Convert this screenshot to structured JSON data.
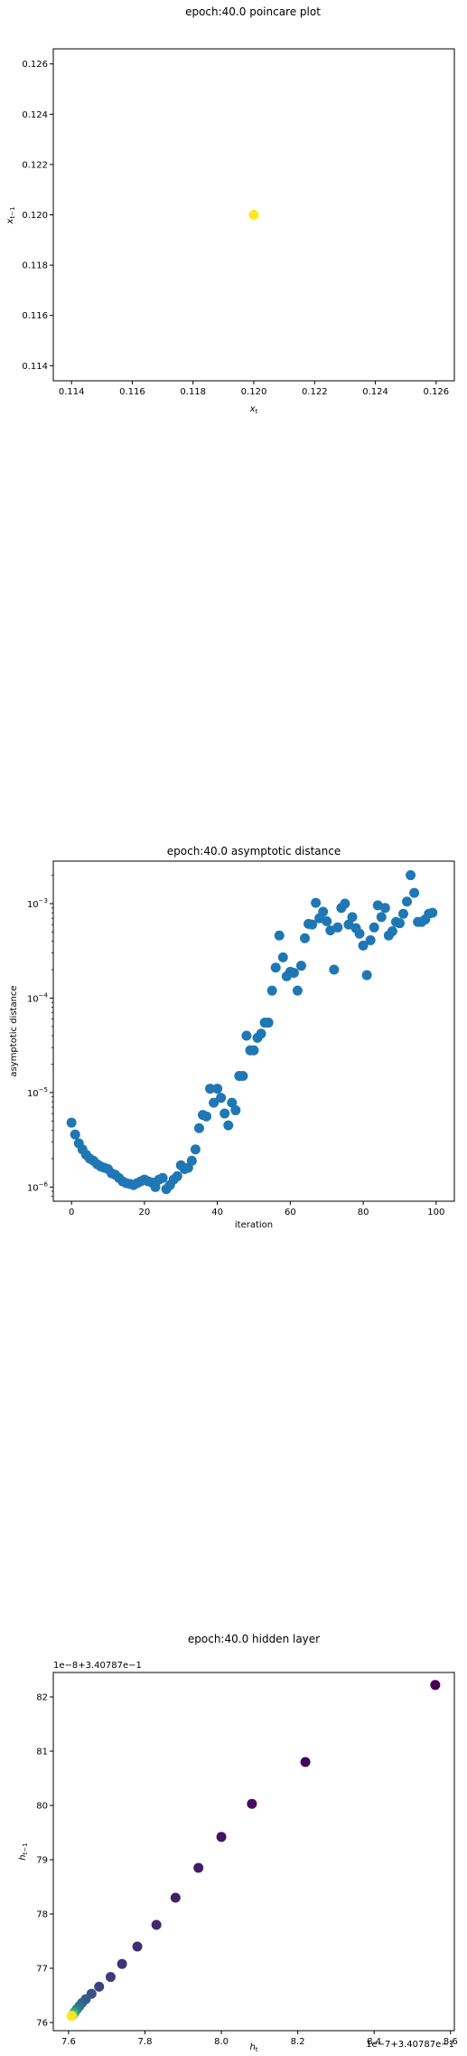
{
  "chart_data": [
    {
      "type": "scatter",
      "title": "epoch:40.0 poincare plot",
      "xlabel": "x_t",
      "ylabel": "x_{t−1}",
      "xlim": [
        0.1134,
        0.1266
      ],
      "ylim": [
        0.1134,
        0.1266
      ],
      "xticks": [
        "0.114",
        "0.116",
        "0.118",
        "0.120",
        "0.122",
        "0.124",
        "0.126"
      ],
      "yticks": [
        "0.114",
        "0.116",
        "0.118",
        "0.120",
        "0.122",
        "0.124",
        "0.126"
      ],
      "x_tick_values": [
        0.114,
        0.116,
        0.118,
        0.12,
        0.122,
        0.124,
        0.126
      ],
      "y_tick_values": [
        0.114,
        0.116,
        0.118,
        0.12,
        0.122,
        0.124,
        0.126
      ],
      "points": [
        {
          "x": 0.12,
          "y": 0.12
        }
      ],
      "color": "#fde725",
      "grid": false
    },
    {
      "type": "scatter",
      "title": "epoch:40.0 asymptotic distance",
      "xlabel": "iteration",
      "ylabel": "asymptotic distance",
      "xlim": [
        -5,
        105
      ],
      "ylim_log10": [
        -6.15,
        -2.55
      ],
      "yscale": "log",
      "xticks": [
        "0",
        "20",
        "40",
        "60",
        "80",
        "100"
      ],
      "x_tick_values": [
        0,
        20,
        40,
        60,
        80,
        100
      ],
      "y_tick_exponents": [
        "−6",
        "−5",
        "−4",
        "−3"
      ],
      "y_tick_values": [
        1e-06,
        1e-05,
        0.0001,
        0.001
      ],
      "color": "#1f77b4",
      "grid": false,
      "x": [
        0,
        1,
        2,
        3,
        4,
        5,
        6,
        7,
        8,
        9,
        10,
        11,
        12,
        13,
        14,
        15,
        16,
        17,
        18,
        19,
        20,
        21,
        22,
        23,
        24,
        25,
        26,
        27,
        28,
        29,
        30,
        31,
        32,
        33,
        34,
        35,
        36,
        37,
        38,
        39,
        40,
        41,
        42,
        43,
        44,
        45,
        46,
        47,
        48,
        49,
        50,
        51,
        52,
        53,
        54,
        55,
        56,
        57,
        58,
        59,
        60,
        61,
        62,
        63,
        64,
        65,
        66,
        67,
        68,
        69,
        70,
        71,
        72,
        73,
        74,
        75,
        76,
        77,
        78,
        79,
        80,
        81,
        82,
        83,
        84,
        85,
        86,
        87,
        88,
        89,
        90,
        91,
        92,
        93,
        94,
        95,
        96,
        97,
        98,
        99
      ],
      "y": [
        4.8e-06,
        3.6e-06,
        2.9e-06,
        2.5e-06,
        2.2e-06,
        2e-06,
        1.9e-06,
        1.75e-06,
        1.65e-06,
        1.6e-06,
        1.55e-06,
        1.4e-06,
        1.35e-06,
        1.25e-06,
        1.15e-06,
        1.1e-06,
        1.08e-06,
        1.05e-06,
        1.1e-06,
        1.15e-06,
        1.2e-06,
        1.15e-06,
        1.12e-06,
        1e-06,
        1.2e-06,
        1.25e-06,
        9.5e-07,
        1.05e-06,
        1.2e-06,
        1.3e-06,
        1.7e-06,
        1.55e-06,
        1.6e-06,
        1.9e-06,
        2.5e-06,
        4.2e-06,
        5.8e-06,
        5.6e-06,
        1.1e-05,
        7.8e-06,
        1.1e-05,
        8.8e-06,
        6e-06,
        4.5e-06,
        7.8e-06,
        6.5e-06,
        1.5e-05,
        1.5e-05,
        4e-05,
        2.8e-05,
        2.8e-05,
        3.8e-05,
        4.2e-05,
        5.5e-05,
        5.5e-05,
        0.00012,
        0.00021,
        0.00046,
        0.00027,
        0.00017,
        0.00019,
        0.000185,
        0.00012,
        0.00022,
        0.00043,
        0.00061,
        0.0006,
        0.00102,
        0.0007,
        0.00082,
        0.00065,
        0.00052,
        0.0002,
        0.00056,
        0.0009,
        0.001,
        0.0006,
        0.00072,
        0.00055,
        0.00048,
        0.00036,
        0.000175,
        0.00041,
        0.00056,
        0.00096,
        0.00072,
        0.0009,
        0.00046,
        0.00051,
        0.00064,
        0.00062,
        0.00078,
        0.00105,
        0.002,
        0.0013,
        0.00064,
        0.00064,
        0.00068,
        0.00078,
        0.0008
      ]
    },
    {
      "type": "scatter",
      "title": "epoch:40.0 hidden layer",
      "xlabel": "h_t",
      "ylabel": "h_{t−1}",
      "x_offset_label": "1e−7+3.40787e−1",
      "y_offset_label": "1e−8+3.40787e−1",
      "xlim": [
        7.56,
        8.61
      ],
      "ylim": [
        75.85,
        82.45
      ],
      "xticks": [
        "7.6",
        "7.8",
        "8.0",
        "8.2",
        "8.4",
        "8.6"
      ],
      "yticks": [
        "76",
        "77",
        "78",
        "79",
        "80",
        "81",
        "82"
      ],
      "x_tick_values": [
        7.6,
        7.8,
        8.0,
        8.2,
        8.4,
        8.6
      ],
      "y_tick_values": [
        76,
        77,
        78,
        79,
        80,
        81,
        82
      ],
      "colormap": "viridis",
      "grid": false,
      "points": [
        {
          "x": 8.56,
          "y": 82.22,
          "c": 0.0
        },
        {
          "x": 8.22,
          "y": 80.8,
          "c": 0.02
        },
        {
          "x": 8.08,
          "y": 80.03,
          "c": 0.04
        },
        {
          "x": 8.0,
          "y": 79.42,
          "c": 0.06
        },
        {
          "x": 7.94,
          "y": 78.85,
          "c": 0.08
        },
        {
          "x": 7.88,
          "y": 78.3,
          "c": 0.1
        },
        {
          "x": 7.83,
          "y": 77.8,
          "c": 0.12
        },
        {
          "x": 7.78,
          "y": 77.4,
          "c": 0.14
        },
        {
          "x": 7.74,
          "y": 77.08,
          "c": 0.16
        },
        {
          "x": 7.71,
          "y": 76.84,
          "c": 0.18
        },
        {
          "x": 7.68,
          "y": 76.66,
          "c": 0.2
        },
        {
          "x": 7.66,
          "y": 76.53,
          "c": 0.24
        },
        {
          "x": 7.645,
          "y": 76.43,
          "c": 0.28
        },
        {
          "x": 7.635,
          "y": 76.36,
          "c": 0.32
        },
        {
          "x": 7.628,
          "y": 76.3,
          "c": 0.36
        },
        {
          "x": 7.622,
          "y": 76.25,
          "c": 0.42
        },
        {
          "x": 7.618,
          "y": 76.21,
          "c": 0.48
        },
        {
          "x": 7.615,
          "y": 76.18,
          "c": 0.56
        },
        {
          "x": 7.612,
          "y": 76.15,
          "c": 0.66
        },
        {
          "x": 7.61,
          "y": 76.13,
          "c": 0.78
        },
        {
          "x": 7.608,
          "y": 76.12,
          "c": 1.0
        }
      ]
    }
  ]
}
